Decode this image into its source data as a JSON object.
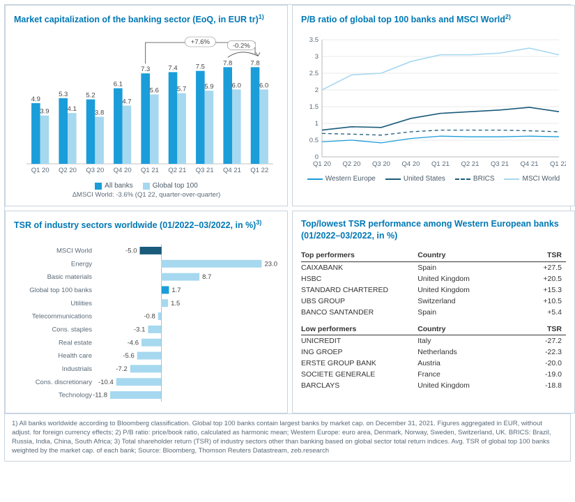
{
  "colors": {
    "accent": "#0078b4",
    "dark_bar": "#1a9dd9",
    "light_bar": "#a6d8ef",
    "msci_dark": "#1a5a7a",
    "grid": "#cccccc",
    "axis": "#888888",
    "text": "#5a6a78"
  },
  "panel1": {
    "title": "Market capitalization of the banking sector (EoQ, in EUR tr)",
    "title_sup": "1)",
    "categories": [
      "Q1 20",
      "Q2 20",
      "Q3 20",
      "Q4 20",
      "Q1 21",
      "Q2 21",
      "Q3 21",
      "Q4 21",
      "Q1 22"
    ],
    "series": [
      {
        "name": "All banks",
        "color": "#1a9dd9",
        "values": [
          4.9,
          5.3,
          5.2,
          6.1,
          7.3,
          7.4,
          7.5,
          7.8,
          7.8
        ]
      },
      {
        "name": "Global top 100",
        "color": "#a6d8ef",
        "values": [
          3.9,
          4.1,
          3.8,
          4.7,
          5.6,
          5.7,
          5.9,
          6.0,
          6.0
        ]
      }
    ],
    "ymax": 9,
    "anno_left": "+7.6%",
    "anno_right": "-0.2%",
    "footnote": "ΔMSCI World: -3.6% (Q1 22, quarter-over-quarter)"
  },
  "panel2": {
    "title": "P/B ratio of global top 100 banks and MSCI World",
    "title_sup": "2)",
    "categories": [
      "Q1 20",
      "Q2 20",
      "Q3 20",
      "Q4 20",
      "Q1 21",
      "Q2 21",
      "Q3 21",
      "Q4 21",
      "Q1 22"
    ],
    "ylim": [
      0,
      3.5
    ],
    "ytick_step": 0.5,
    "series": [
      {
        "name": "Western Europe",
        "color": "#1a9dd9",
        "dash": "",
        "width": 1.3,
        "values": [
          0.45,
          0.5,
          0.42,
          0.55,
          0.62,
          0.6,
          0.6,
          0.62,
          0.6
        ]
      },
      {
        "name": "United States",
        "color": "#1a5a7a",
        "dash": "",
        "width": 1.6,
        "values": [
          0.8,
          0.9,
          0.88,
          1.15,
          1.3,
          1.35,
          1.4,
          1.48,
          1.35
        ]
      },
      {
        "name": "BRICS",
        "color": "#1a5a7a",
        "dash": "5,4",
        "width": 1.3,
        "values": [
          0.7,
          0.68,
          0.65,
          0.75,
          0.8,
          0.8,
          0.8,
          0.78,
          0.75
        ]
      },
      {
        "name": "MSCI World",
        "color": "#a6d8ef",
        "dash": "",
        "width": 1.6,
        "values": [
          2.0,
          2.45,
          2.5,
          2.85,
          3.05,
          3.05,
          3.1,
          3.25,
          3.05
        ]
      }
    ]
  },
  "panel3": {
    "title": "TSR of industry sectors worldwide (01/2022–03/2022, in %)",
    "title_sup": "3)",
    "xlim": [
      -15,
      25
    ],
    "items": [
      {
        "label": "MSCI World",
        "value": -5.0,
        "color": "#1a5a7a"
      },
      {
        "label": "Energy",
        "value": 23.0,
        "color": "#a6d8ef"
      },
      {
        "label": "Basic materials",
        "value": 8.7,
        "color": "#a6d8ef"
      },
      {
        "label": "Global top 100 banks",
        "value": 1.7,
        "color": "#1a9dd9"
      },
      {
        "label": "Utilities",
        "value": 1.5,
        "color": "#a6d8ef"
      },
      {
        "label": "Telecommunications",
        "value": -0.8,
        "color": "#a6d8ef"
      },
      {
        "label": "Cons. staples",
        "value": -3.1,
        "color": "#a6d8ef"
      },
      {
        "label": "Real estate",
        "value": -4.6,
        "color": "#a6d8ef"
      },
      {
        "label": "Health care",
        "value": -5.6,
        "color": "#a6d8ef"
      },
      {
        "label": "Industrials",
        "value": -7.2,
        "color": "#a6d8ef"
      },
      {
        "label": "Cons. discretionary",
        "value": -10.4,
        "color": "#a6d8ef"
      },
      {
        "label": "Technology",
        "value": -11.8,
        "color": "#a6d8ef"
      }
    ]
  },
  "panel4": {
    "title": "Top/lowest TSR performance among Western European banks (01/2022–03/2022, in %)",
    "headers": {
      "h1": "Top performers",
      "h2": "Country",
      "h3": "TSR",
      "low": "Low performers"
    },
    "top": [
      {
        "name": "CAIXABANK",
        "country": "Spain",
        "tsr": "+27.5"
      },
      {
        "name": "HSBC",
        "country": "United Kingdom",
        "tsr": "+20.5"
      },
      {
        "name": "STANDARD CHARTERED",
        "country": "United Kingdom",
        "tsr": "+15.3"
      },
      {
        "name": "UBS GROUP",
        "country": "Switzerland",
        "tsr": "+10.5"
      },
      {
        "name": "BANCO SANTANDER",
        "country": "Spain",
        "tsr": "+5.4"
      }
    ],
    "low": [
      {
        "name": "UNICREDIT",
        "country": "Italy",
        "tsr": "-27.2"
      },
      {
        "name": "ING GROEP",
        "country": "Netherlands",
        "tsr": "-22.3"
      },
      {
        "name": "ERSTE GROUP BANK",
        "country": "Austria",
        "tsr": "-20.0"
      },
      {
        "name": "SOCIETE GENERALE",
        "country": "France",
        "tsr": "-19.0"
      },
      {
        "name": "BARCLAYS",
        "country": "United Kingdom",
        "tsr": "-18.8"
      }
    ]
  },
  "footnotes": "1) All banks worldwide according to Bloomberg classification. Global top 100 banks contain largest banks by market cap. on December 31, 2021. Figures aggregated in EUR, without adjust. for foreign currency effects; 2) P/B ratio: price/book ratio, calculated as harmonic mean; Western Europe: euro area, Denmark, Norway, Sweden, Switzerland, UK. BRICS: Brazil, Russia, India, China, South Africa; 3) Total shareholder return (TSR) of industry sectors other than banking based on global sector total return indices. Avg. TSR of global top 100 banks weighted by the market cap. of each bank; Source: Bloomberg, Thomson Reuters Datastream, zeb.research"
}
